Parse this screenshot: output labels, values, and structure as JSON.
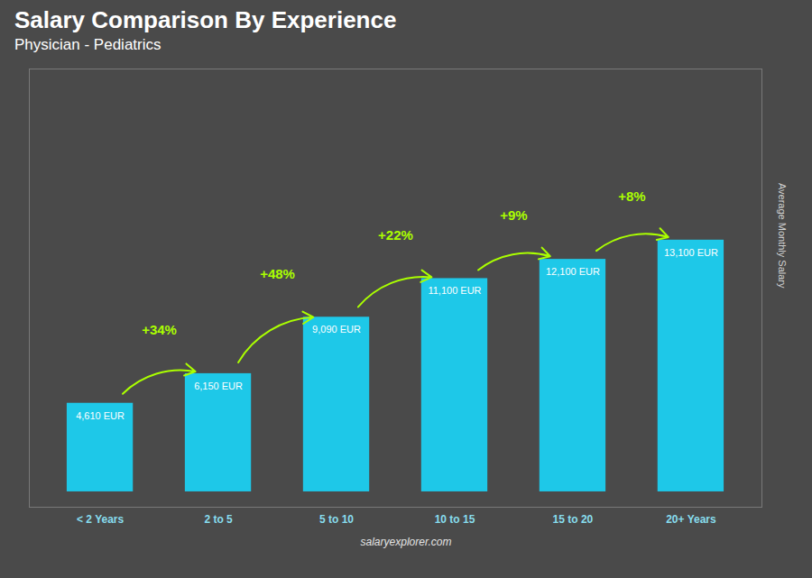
{
  "chart_data": {
    "type": "bar",
    "title": "Salary Comparison By Experience",
    "subtitle": "Physician - Pediatrics",
    "categories": [
      "< 2 Years",
      "2 to 5",
      "5 to 10",
      "10 to 15",
      "15 to 20",
      "20+ Years"
    ],
    "values": [
      4610,
      6150,
      9090,
      11100,
      12100,
      13100
    ],
    "value_labels": [
      "4,610 EUR",
      "6,150 EUR",
      "9,090 EUR",
      "11,100 EUR",
      "12,100 EUR",
      "13,100 EUR"
    ],
    "data_labels": true,
    "color": "#1EC8E8",
    "ylabel": "Average Monthly Salary",
    "ylim": [
      -800,
      22008
    ],
    "tick_labels": "x",
    "grid": false,
    "annotations": [
      "+34%",
      "+48%",
      "+22%",
      "+9%",
      "+8%"
    ],
    "caption": "salaryexplorer.com"
  }
}
